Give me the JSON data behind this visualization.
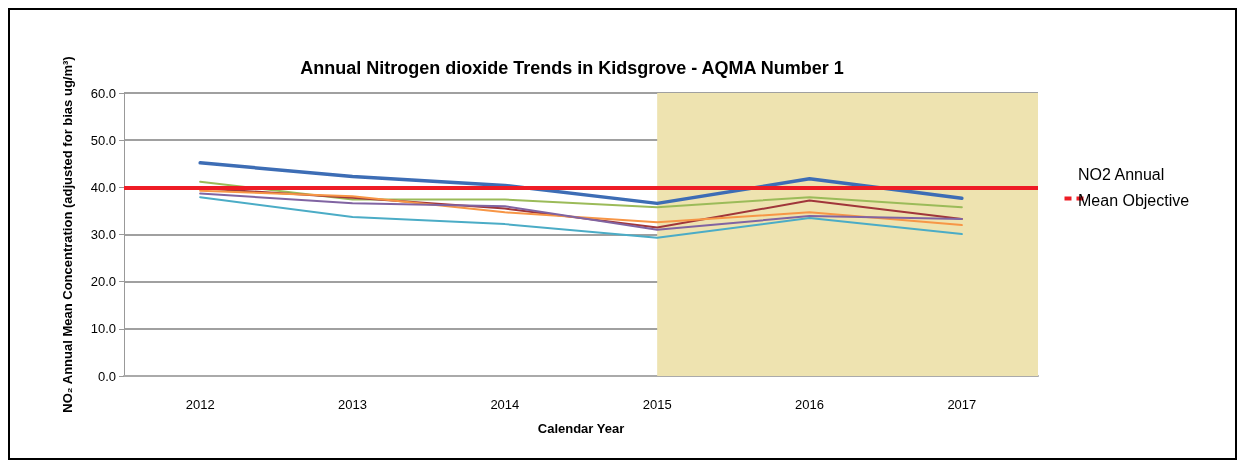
{
  "chart_data": {
    "type": "line",
    "title": "Annual Nitrogen dioxide Trends in Kidsgrove - AQMA Number 1",
    "xlabel": "Calendar Year",
    "ylabel": "NO₂ Annual Mean Concentration (adjusted for bias ug/m³)",
    "x": [
      2012,
      2013,
      2014,
      2015,
      2016,
      2017
    ],
    "xlim": [
      2011.5,
      2017.5
    ],
    "xticks": [
      2012,
      2013,
      2014,
      2015,
      2016,
      2017
    ],
    "ylim": [
      0,
      60
    ],
    "yticks": [
      {
        "value": 0,
        "label": "0.0"
      },
      {
        "value": 10,
        "label": "10.0"
      },
      {
        "value": 20,
        "label": "20.0"
      },
      {
        "value": 30,
        "label": "30.0"
      },
      {
        "value": 40,
        "label": "40.0"
      },
      {
        "value": 50,
        "label": "50.0"
      },
      {
        "value": 60,
        "label": "60.0"
      }
    ],
    "grid": "y",
    "marker": "none",
    "line_style": "solid",
    "series": [
      {
        "color": "#3d6db5",
        "values": [
          45.2,
          42.3,
          40.4,
          36.6,
          41.8,
          37.7
        ]
      },
      {
        "color": "#9bbb59",
        "values": [
          41.2,
          37.4,
          37.4,
          35.8,
          37.9,
          35.8
        ]
      },
      {
        "color": "#a0363a",
        "values": [
          39.8,
          37.8,
          35.5,
          31.5,
          37.2,
          33.3
        ]
      },
      {
        "color": "#f79646",
        "values": [
          39.3,
          38.1,
          34.7,
          32.6,
          34.7,
          32.0
        ]
      },
      {
        "color": "#8064a2",
        "values": [
          38.7,
          36.6,
          36.0,
          31.0,
          33.9,
          33.3
        ]
      },
      {
        "color": "#4bacc6",
        "values": [
          37.9,
          33.7,
          32.2,
          29.3,
          33.5,
          30.1
        ]
      }
    ],
    "ref_lines": [
      {
        "axis": "y",
        "value": 40,
        "label": "NO2 Annual Mean Objective",
        "color": "#ee1c25",
        "line_style": "solid"
      }
    ],
    "bands": [
      {
        "axis": "x",
        "from": 2015,
        "to": 2017.5,
        "color": "#eee3b0"
      }
    ]
  }
}
